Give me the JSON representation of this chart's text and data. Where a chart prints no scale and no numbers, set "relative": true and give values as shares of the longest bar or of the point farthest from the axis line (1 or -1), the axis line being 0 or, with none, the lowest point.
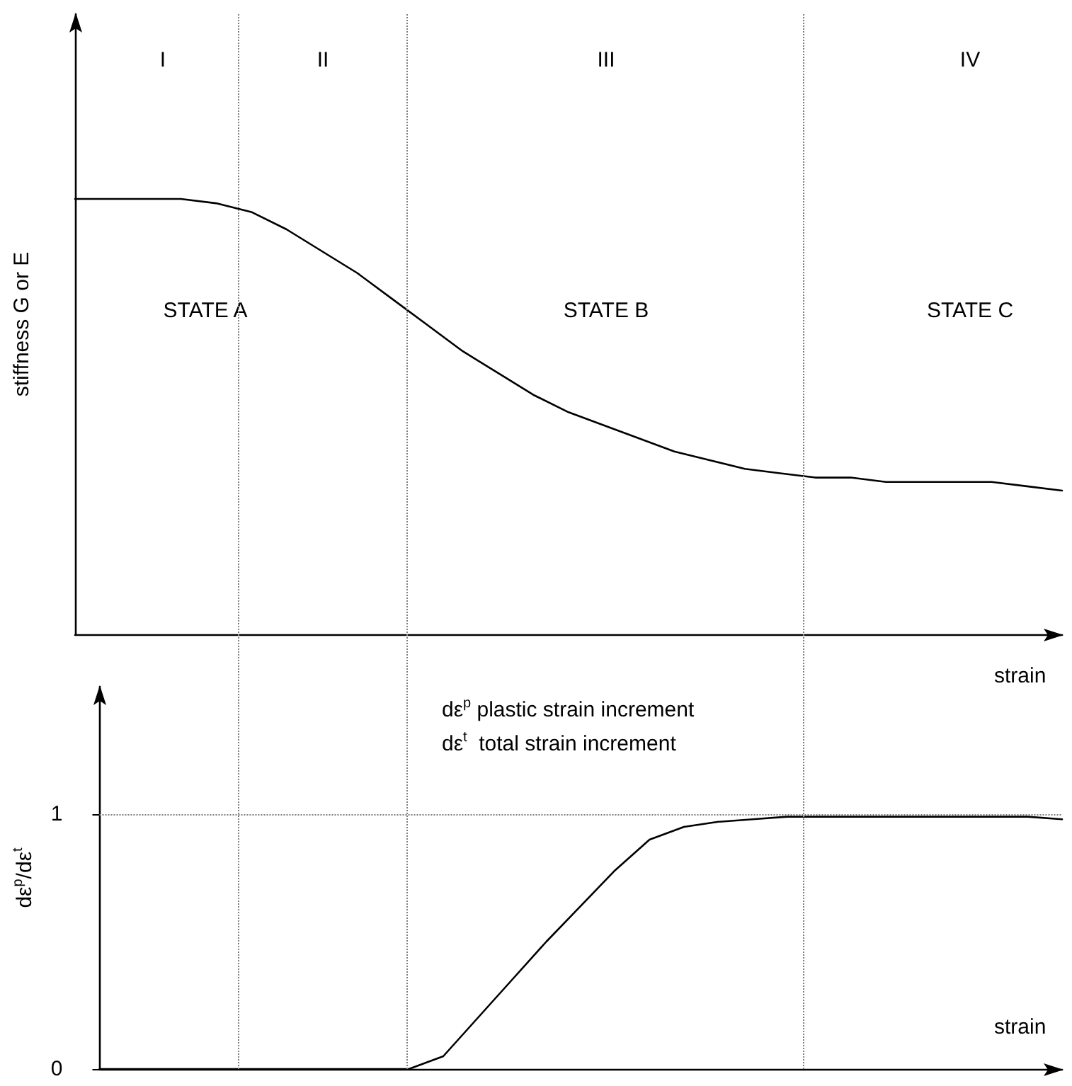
{
  "chart_data": [
    {
      "type": "line",
      "relative": true,
      "tick_labels": false,
      "marker": "none",
      "line_style": "solid",
      "xlabel": "strain",
      "ylabel": "stiffness G or E",
      "categories": [
        null,
        null,
        null,
        null,
        null,
        null,
        null,
        null,
        null,
        null,
        null,
        null,
        null,
        null,
        null,
        null,
        null,
        null,
        null,
        null,
        null,
        null,
        null,
        null,
        null,
        null,
        null,
        null,
        null
      ],
      "values": [
        1,
        1,
        1,
        1,
        0.99,
        0.97,
        0.93,
        0.88,
        0.83,
        0.77,
        0.71,
        0.65,
        0.6,
        0.55,
        0.51,
        0.48,
        0.45,
        0.42,
        0.4,
        0.38,
        0.37,
        0.36,
        0.36,
        0.35,
        0.35,
        0.35,
        0.35,
        0.34,
        0.33
      ],
      "color": "#000000",
      "annotations": [
        "I",
        "II",
        "III",
        "IV",
        "STATE A",
        "STATE B",
        "STATE C"
      ]
    },
    {
      "type": "line",
      "ylim": [
        0,
        1.5
      ],
      "yticks": [
        0,
        1
      ],
      "tick_labels": "y",
      "marker": "none",
      "line_style": "solid",
      "xlabel": "strain",
      "ylabel": "dε$^{p}$/dε$^{t}$",
      "categories": [
        null,
        null,
        null,
        null,
        null,
        null,
        null,
        null,
        null,
        null,
        null,
        null,
        null,
        null,
        null,
        null,
        null,
        null,
        null,
        null,
        null,
        null,
        null,
        null,
        null,
        null,
        null,
        null,
        null
      ],
      "values": [
        0,
        0,
        0,
        0,
        0,
        0,
        0,
        0,
        0,
        0,
        0.05,
        0.2,
        0.35,
        0.5,
        0.64,
        0.78,
        0.9,
        0.95,
        0.97,
        0.98,
        0.99,
        0.99,
        0.99,
        0.99,
        0.99,
        0.99,
        0.99,
        0.99,
        0.98
      ],
      "color": "#000000",
      "ref_lines": [
        {
          "axis": "y",
          "value": 1,
          "color": "#808080",
          "line_style": "dotted"
        }
      ],
      "annotations": [
        "dε$^{p}$ plastic strain increment",
        "dε$^{t}$  total strain increment"
      ]
    }
  ]
}
